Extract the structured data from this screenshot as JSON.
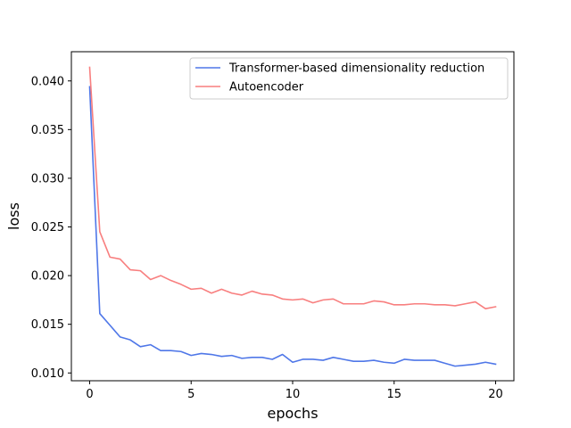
{
  "chart_data": {
    "type": "line",
    "xlabel": "epochs",
    "ylabel": "loss",
    "xlim": [
      -0.9,
      20.9
    ],
    "ylim": [
      0.0092,
      0.043
    ],
    "xticks": [
      0,
      5,
      10,
      15,
      20
    ],
    "yticks": [
      0.01,
      0.015,
      0.02,
      0.025,
      0.03,
      0.035,
      0.04
    ],
    "xtick_labels": [
      "0",
      "5",
      "10",
      "15",
      "20"
    ],
    "ytick_labels": [
      "0.010",
      "0.015",
      "0.020",
      "0.025",
      "0.030",
      "0.035",
      "0.040"
    ],
    "grid": false,
    "legend_position": "top-right",
    "x": [
      0,
      0.5,
      1,
      1.5,
      2,
      2.5,
      3,
      3.5,
      4,
      4.5,
      5,
      5.5,
      6,
      6.5,
      7,
      7.5,
      8,
      8.5,
      9,
      9.5,
      10,
      10.5,
      11,
      11.5,
      12,
      12.5,
      13,
      13.5,
      14,
      14.5,
      15,
      15.5,
      16,
      16.5,
      17,
      17.5,
      18,
      18.5,
      19,
      19.5,
      20
    ],
    "series": [
      {
        "name": "Transformer-based dimensionality reduction",
        "color": "#4f77e8",
        "values": [
          0.0394,
          0.0161,
          0.0149,
          0.0137,
          0.0134,
          0.0127,
          0.0129,
          0.0123,
          0.0123,
          0.0122,
          0.0118,
          0.012,
          0.0119,
          0.0117,
          0.0118,
          0.0115,
          0.0116,
          0.0116,
          0.0114,
          0.0119,
          0.0111,
          0.0114,
          0.0114,
          0.0113,
          0.0116,
          0.0114,
          0.0112,
          0.0112,
          0.0113,
          0.0111,
          0.011,
          0.0114,
          0.0113,
          0.0113,
          0.0113,
          0.011,
          0.0107,
          0.0108,
          0.0109,
          0.0111,
          0.0109
        ]
      },
      {
        "name": "Autoencoder",
        "color": "#f87f7f",
        "values": [
          0.0414,
          0.0245,
          0.0219,
          0.0217,
          0.0206,
          0.0205,
          0.0196,
          0.02,
          0.0195,
          0.0191,
          0.0186,
          0.0187,
          0.0182,
          0.0186,
          0.0182,
          0.018,
          0.0184,
          0.0181,
          0.018,
          0.0176,
          0.0175,
          0.0176,
          0.0172,
          0.0175,
          0.0176,
          0.0171,
          0.0171,
          0.0171,
          0.0174,
          0.0173,
          0.017,
          0.017,
          0.0171,
          0.0171,
          0.017,
          0.017,
          0.0169,
          0.0171,
          0.0173,
          0.0166,
          0.0168
        ]
      }
    ]
  }
}
